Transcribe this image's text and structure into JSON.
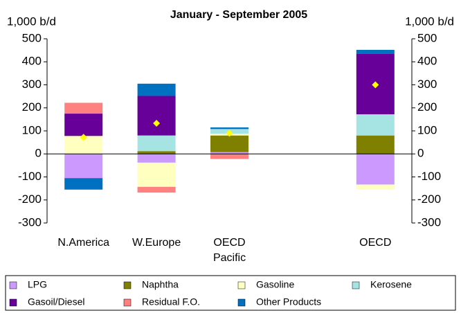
{
  "chart_data": {
    "type": "stacked_bar",
    "title": "January - September 2005",
    "ylabel": "1,000 b/d",
    "y2label": "1,000 b/d",
    "categories": [
      "N.America",
      "W.Europe",
      "OECD Pacific",
      null,
      "OECD"
    ],
    "ylim": [
      -300,
      500
    ],
    "yticks": [
      500,
      400,
      300,
      200,
      100,
      0,
      -100,
      -200,
      -300
    ],
    "y2lim": [
      -300,
      500
    ],
    "y2ticks": [
      500,
      400,
      300,
      200,
      100,
      0,
      -100,
      -200,
      -300
    ],
    "series": [
      {
        "name": "LPG",
        "color": "#cc99ff",
        "values": [
          -105,
          -38,
          8,
          null,
          -133
        ]
      },
      {
        "name": "Naphtha",
        "color": "#808000",
        "values": [
          0,
          12,
          72,
          null,
          80
        ]
      },
      {
        "name": "Gasoline",
        "color": "#ffffc0",
        "values": [
          78,
          -105,
          8,
          null,
          -22
        ]
      },
      {
        "name": "Kerosene",
        "color": "#a6e3e3",
        "values": [
          0,
          68,
          20,
          null,
          92
        ]
      },
      {
        "name": "Gasoil/Diesel",
        "color": "#660099",
        "values": [
          97,
          172,
          0,
          null,
          263
        ]
      },
      {
        "name": "Residual F.O.",
        "color": "#ff8080",
        "values": [
          47,
          -25,
          -22,
          null,
          0
        ]
      },
      {
        "name": "Other Products",
        "color": "#0070c0",
        "values": [
          -50,
          53,
          7,
          null,
          17
        ]
      }
    ],
    "markers": {
      "color": "#ffff00",
      "values": [
        72,
        133,
        90,
        null,
        300
      ]
    }
  }
}
